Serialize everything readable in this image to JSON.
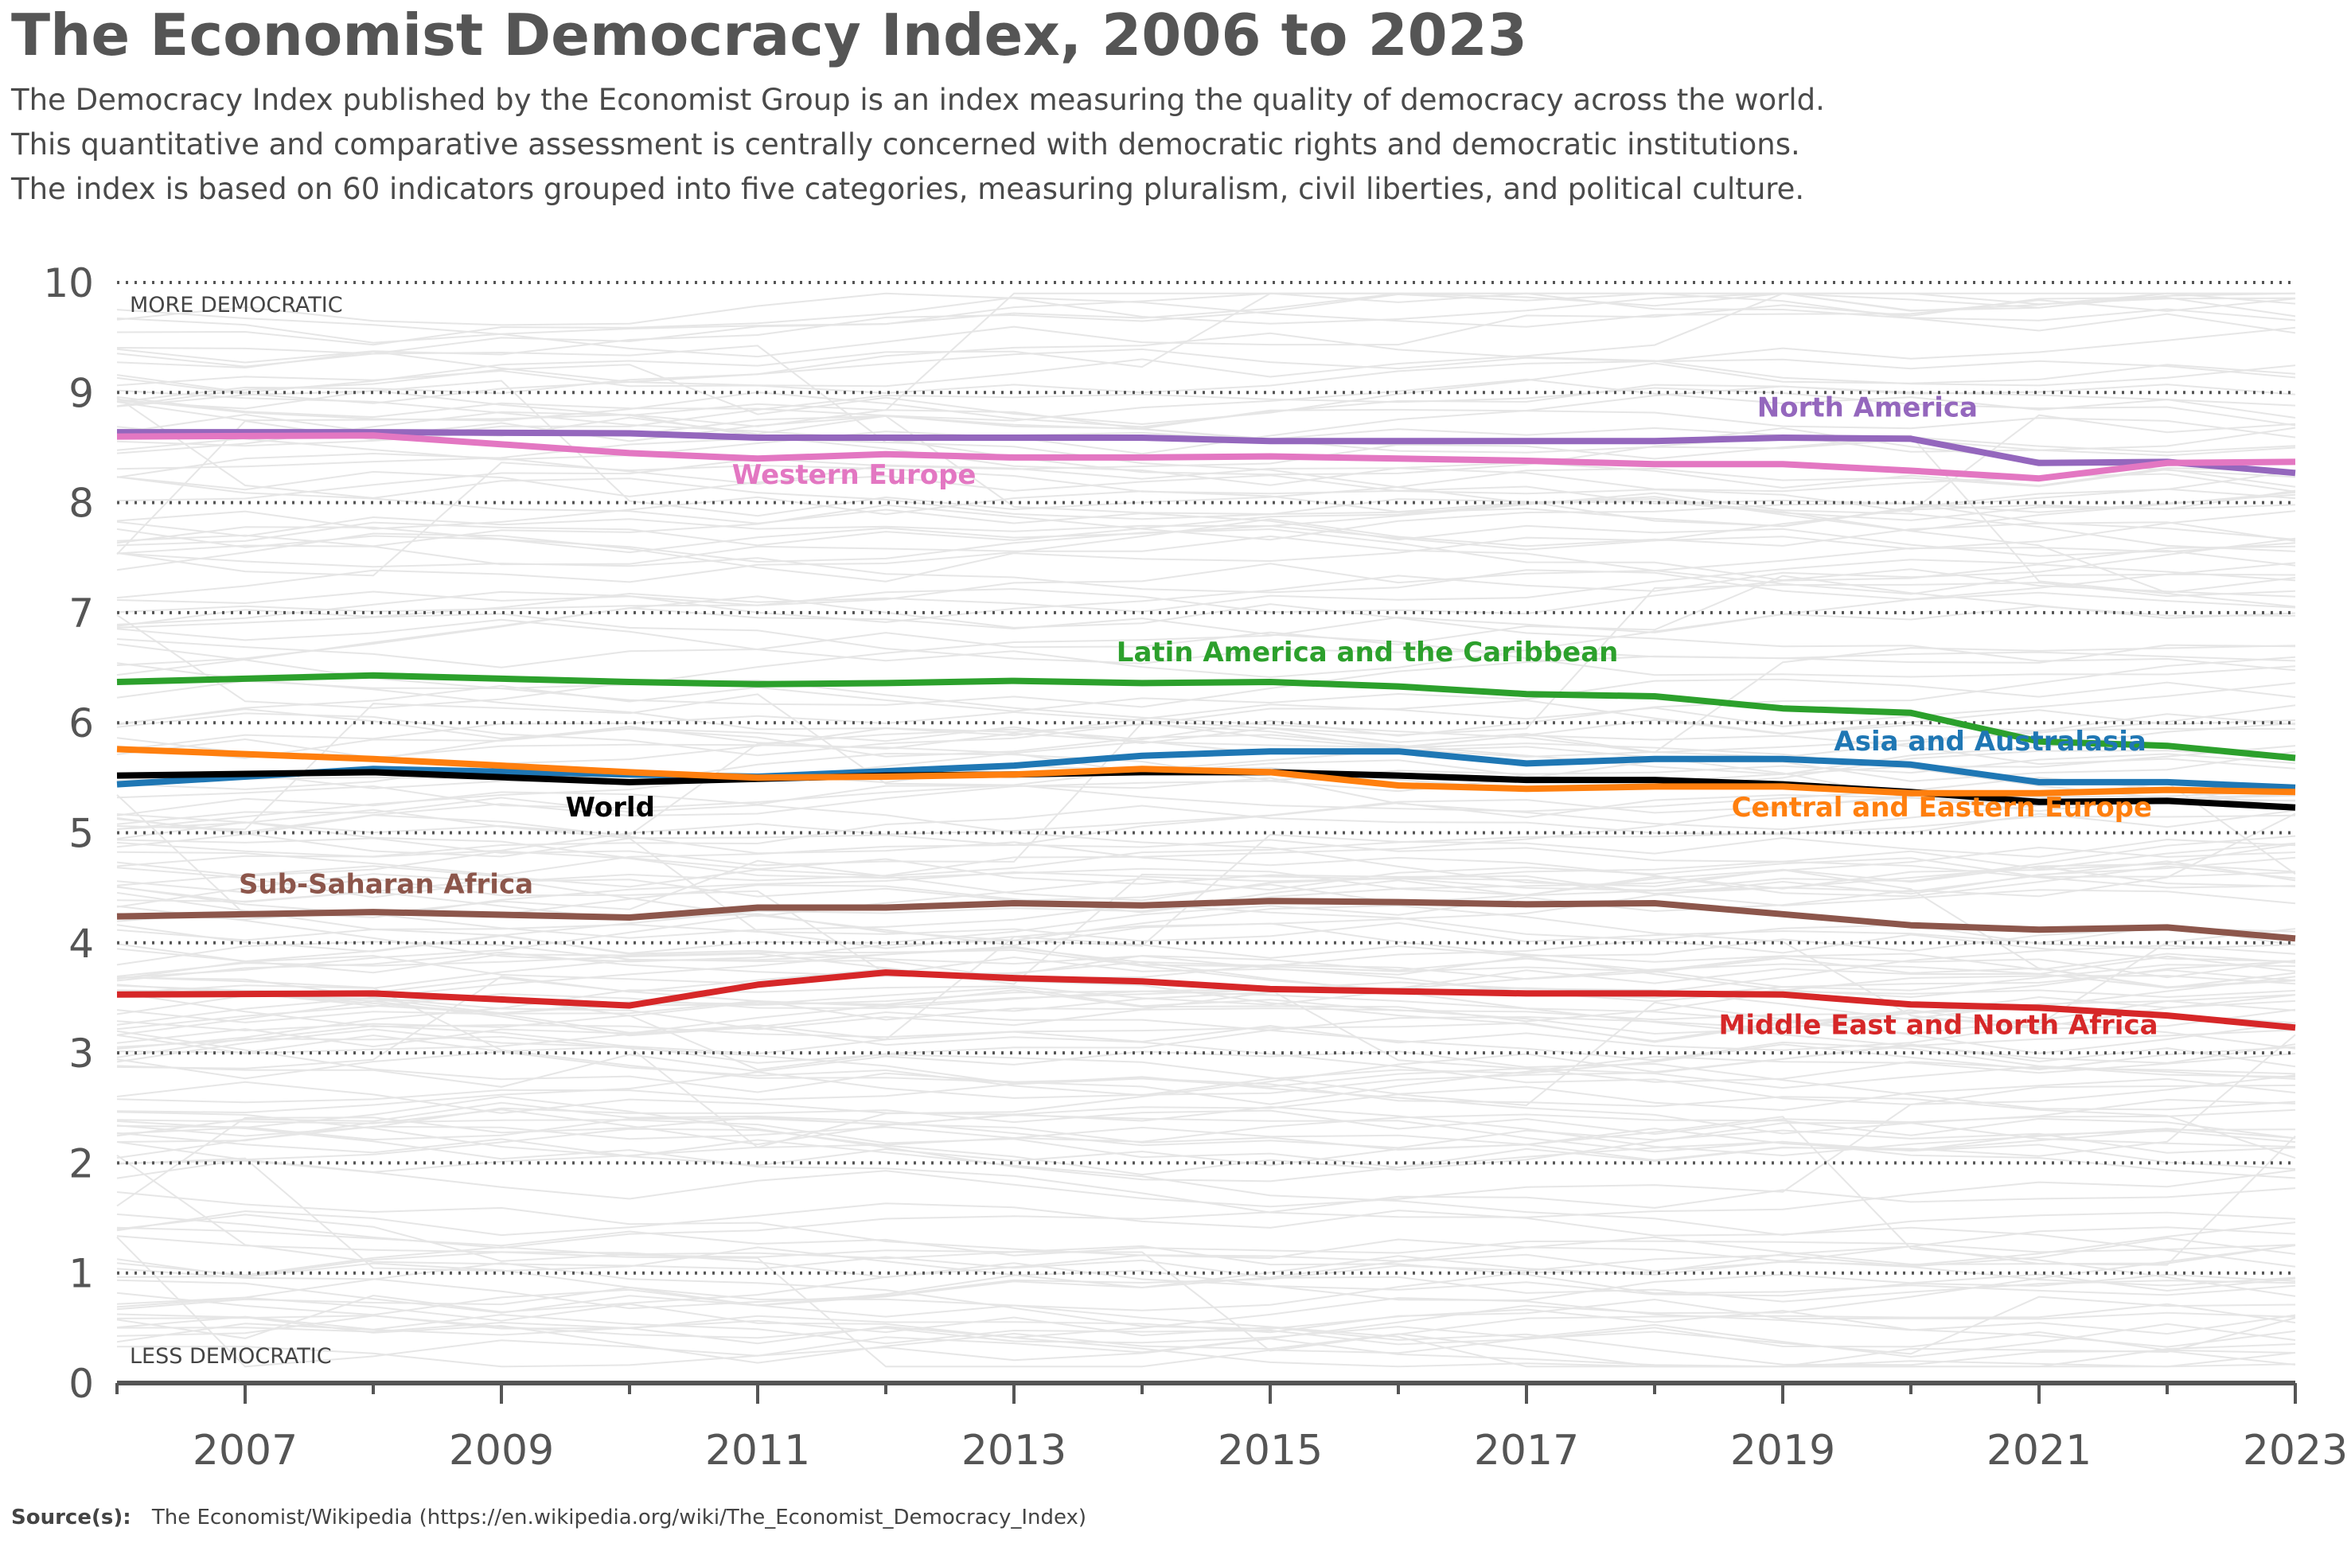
{
  "chart_data": {
    "type": "line",
    "title": "The Economist Democracy Index, 2006 to 2023",
    "subtitle": [
      "The Democracy Index published by the Economist Group is an index measuring the quality of democracy across the world.",
      "This quantitative and comparative assessment is centrally concerned with democratic rights and democratic institutions.",
      "The index is based on 60 indicators grouped into five categories, measuring pluralism, civil liberties, and political culture."
    ],
    "xlabel": "",
    "ylabel": "",
    "xlim": [
      2006,
      2023
    ],
    "ylim": [
      0,
      10
    ],
    "x_ticks": [
      2007,
      2009,
      2011,
      2013,
      2015,
      2017,
      2019,
      2021,
      2023
    ],
    "y_ticks": [
      0,
      1,
      2,
      3,
      4,
      5,
      6,
      7,
      8,
      9,
      10
    ],
    "grid": "horizontal dotted",
    "axis_annotations": {
      "top": "MORE DEMOCRATIC",
      "bottom": "LESS DEMOCRATIC"
    },
    "source_label": "Source(s):",
    "source_text": "The Economist/Wikipedia (https://en.wikipedia.org/wiki/The_Economist_Democracy_Index)",
    "x": [
      2006,
      2008,
      2010,
      2011,
      2012,
      2013,
      2014,
      2015,
      2016,
      2017,
      2018,
      2019,
      2020,
      2021,
      2022,
      2023
    ],
    "series": [
      {
        "name": "North America",
        "color": "#9467bd",
        "values": [
          8.64,
          8.64,
          8.63,
          8.59,
          8.59,
          8.59,
          8.59,
          8.56,
          8.56,
          8.56,
          8.56,
          8.59,
          8.58,
          8.36,
          8.37,
          8.27
        ],
        "label_at": [
          2018.8,
          8.78
        ]
      },
      {
        "name": "Western Europe",
        "color": "#e377c2",
        "values": [
          8.6,
          8.61,
          8.45,
          8.4,
          8.44,
          8.41,
          8.41,
          8.42,
          8.4,
          8.38,
          8.35,
          8.35,
          8.29,
          8.22,
          8.36,
          8.37
        ],
        "label_at": [
          2010.8,
          8.17
        ]
      },
      {
        "name": "Latin America and the Caribbean",
        "color": "#2ca02c",
        "values": [
          6.37,
          6.43,
          6.37,
          6.35,
          6.36,
          6.38,
          6.36,
          6.37,
          6.33,
          6.26,
          6.24,
          6.13,
          6.09,
          5.83,
          5.79,
          5.68
        ],
        "label_at": [
          2013.8,
          6.56
        ]
      },
      {
        "name": "Asia and Australasia",
        "color": "#1f77b4",
        "values": [
          5.44,
          5.58,
          5.53,
          5.51,
          5.56,
          5.61,
          5.7,
          5.74,
          5.74,
          5.63,
          5.67,
          5.67,
          5.62,
          5.46,
          5.46,
          5.41
        ],
        "label_at": [
          2019.4,
          5.75
        ]
      },
      {
        "name": "World",
        "color": "#000000",
        "values": [
          5.52,
          5.55,
          5.46,
          5.49,
          5.52,
          5.53,
          5.55,
          5.55,
          5.52,
          5.48,
          5.48,
          5.44,
          5.37,
          5.28,
          5.29,
          5.23
        ],
        "label_at": [
          2009.5,
          5.15
        ]
      },
      {
        "name": "Central and Eastern Europe",
        "color": "#ff7f0e",
        "values": [
          5.76,
          5.67,
          5.55,
          5.5,
          5.51,
          5.53,
          5.58,
          5.55,
          5.43,
          5.4,
          5.42,
          5.42,
          5.36,
          5.36,
          5.39,
          5.37
        ],
        "label_at": [
          2018.6,
          5.15
        ]
      },
      {
        "name": "Sub-Saharan Africa",
        "color": "#8c564b",
        "values": [
          4.24,
          4.28,
          4.23,
          4.32,
          4.32,
          4.36,
          4.34,
          4.38,
          4.37,
          4.35,
          4.36,
          4.26,
          4.16,
          4.12,
          4.14,
          4.04
        ],
        "label_at": [
          2006.95,
          4.45
        ]
      },
      {
        "name": "Middle East and North Africa",
        "color": "#d62728",
        "values": [
          3.53,
          3.54,
          3.43,
          3.62,
          3.73,
          3.68,
          3.65,
          3.58,
          3.56,
          3.54,
          3.54,
          3.53,
          3.44,
          3.41,
          3.34,
          3.23
        ],
        "label_at": [
          2018.5,
          3.17
        ]
      }
    ]
  }
}
